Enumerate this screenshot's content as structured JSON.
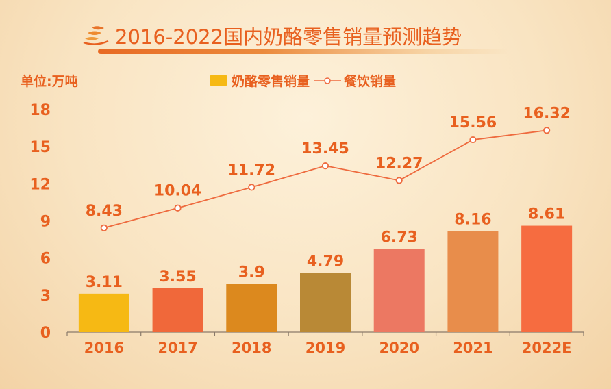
{
  "header": {
    "title": "2016-2022国内奶酪零售销量预测趋势",
    "unit_label": "单位:万吨"
  },
  "chart_data": {
    "type": "bar",
    "categories": [
      "2016",
      "2017",
      "2018",
      "2019",
      "2020",
      "2021",
      "2022E"
    ],
    "ylim": [
      0,
      18
    ],
    "yticks": [
      0,
      3,
      6,
      9,
      12,
      15,
      18
    ],
    "legend_position": "top",
    "series": [
      {
        "name": "奶酪零售销量",
        "type": "bar",
        "values": [
          3.11,
          3.55,
          3.9,
          4.79,
          6.73,
          8.16,
          8.61
        ],
        "value_labels": [
          "3.11",
          "3.55",
          "3.9",
          "4.79",
          "6.73",
          "8.16",
          "8.61"
        ],
        "colors": [
          "#f6b914",
          "#f0683a",
          "#dc891e",
          "#b98936",
          "#ec7862",
          "#e88d4b",
          "#f66c40"
        ]
      },
      {
        "name": "餐饮销量",
        "type": "line",
        "values": [
          8.43,
          10.04,
          11.72,
          13.45,
          12.27,
          15.56,
          16.32
        ],
        "value_labels": [
          "8.43",
          "10.04",
          "11.72",
          "13.45",
          "12.27",
          "15.56",
          "16.32"
        ],
        "color": "#ee6a3e"
      }
    ],
    "label_color": "#e8601f"
  }
}
